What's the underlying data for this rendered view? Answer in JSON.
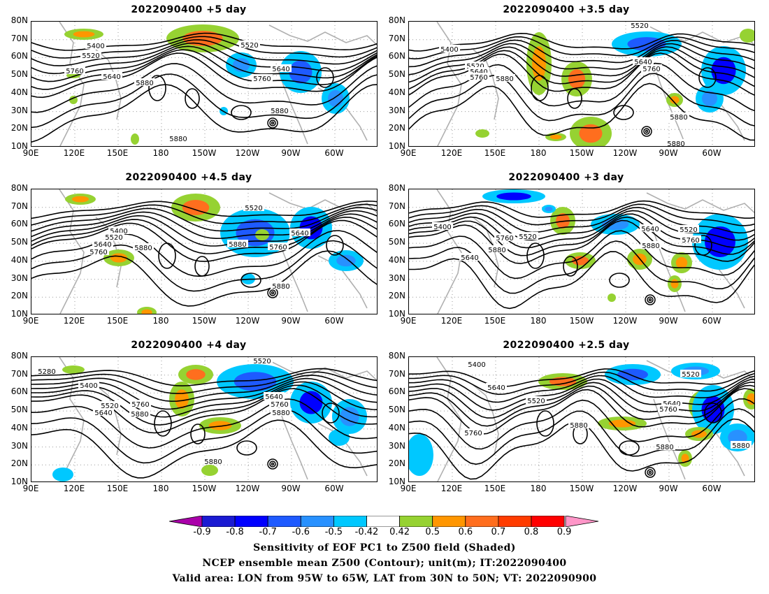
{
  "panels": [
    {
      "title": "2022090400 +5 day",
      "contour_labels": [
        "5400",
        "5520",
        "5760",
        "5640",
        "5880",
        "5520",
        "5640",
        "5760",
        "5880",
        "5880"
      ]
    },
    {
      "title": "2022090400 +3.5 day",
      "contour_labels": [
        "5520",
        "5400",
        "5520",
        "5640",
        "5760",
        "5880",
        "5640",
        "5760",
        "5880",
        "5880"
      ]
    },
    {
      "title": "2022090400 +4.5 day",
      "contour_labels": [
        "5400",
        "5520",
        "5640",
        "5760",
        "5880",
        "5520",
        "5880",
        "5640",
        "5760",
        "5880"
      ]
    },
    {
      "title": "2022090400 +3 day",
      "contour_labels": [
        "5400",
        "5760",
        "5880",
        "5640",
        "5520",
        "5640",
        "5880",
        "5520",
        "5760"
      ]
    },
    {
      "title": "2022090400 +4 day",
      "contour_labels": [
        "5280",
        "5400",
        "5520",
        "5640",
        "5760",
        "5880",
        "5520",
        "5640",
        "5760",
        "5880",
        "5880"
      ]
    },
    {
      "title": "2022090400 +2.5 day",
      "contour_labels": [
        "5400",
        "5640",
        "5520",
        "5880",
        "5760",
        "5520",
        "5640",
        "5760",
        "5880",
        "5880"
      ]
    }
  ],
  "axes": {
    "lat_ticks": [
      "80N",
      "70N",
      "60N",
      "50N",
      "40N",
      "30N",
      "20N",
      "10N"
    ],
    "lon_ticks": [
      "90E",
      "120E",
      "150E",
      "180",
      "150W",
      "120W",
      "90W",
      "60W"
    ]
  },
  "colorbar": {
    "labels": [
      "-0.9",
      "-0.8",
      "-0.7",
      "-0.6",
      "-0.5",
      "-0.42",
      "0.42",
      "0.5",
      "0.6",
      "0.7",
      "0.8",
      "0.9"
    ],
    "colors": [
      "#aa00aa",
      "#1a1ad2",
      "#0000ff",
      "#1e5aff",
      "#2891ff",
      "#00c8ff",
      "#ffffff",
      "#96d232",
      "#ff9600",
      "#ff6e1e",
      "#ff3c00",
      "#ff0000",
      "#ff96c8"
    ]
  },
  "caption": {
    "line1": "Sensitivity of EOF PC1 to Z500 field (Shaded)",
    "line2": "NCEP ensemble mean Z500 (Contour); unit(m); IT:2022090400",
    "line3": "Valid area: LON from 95W to 65W, LAT from 30N to 50N; VT: 2022090900"
  }
}
